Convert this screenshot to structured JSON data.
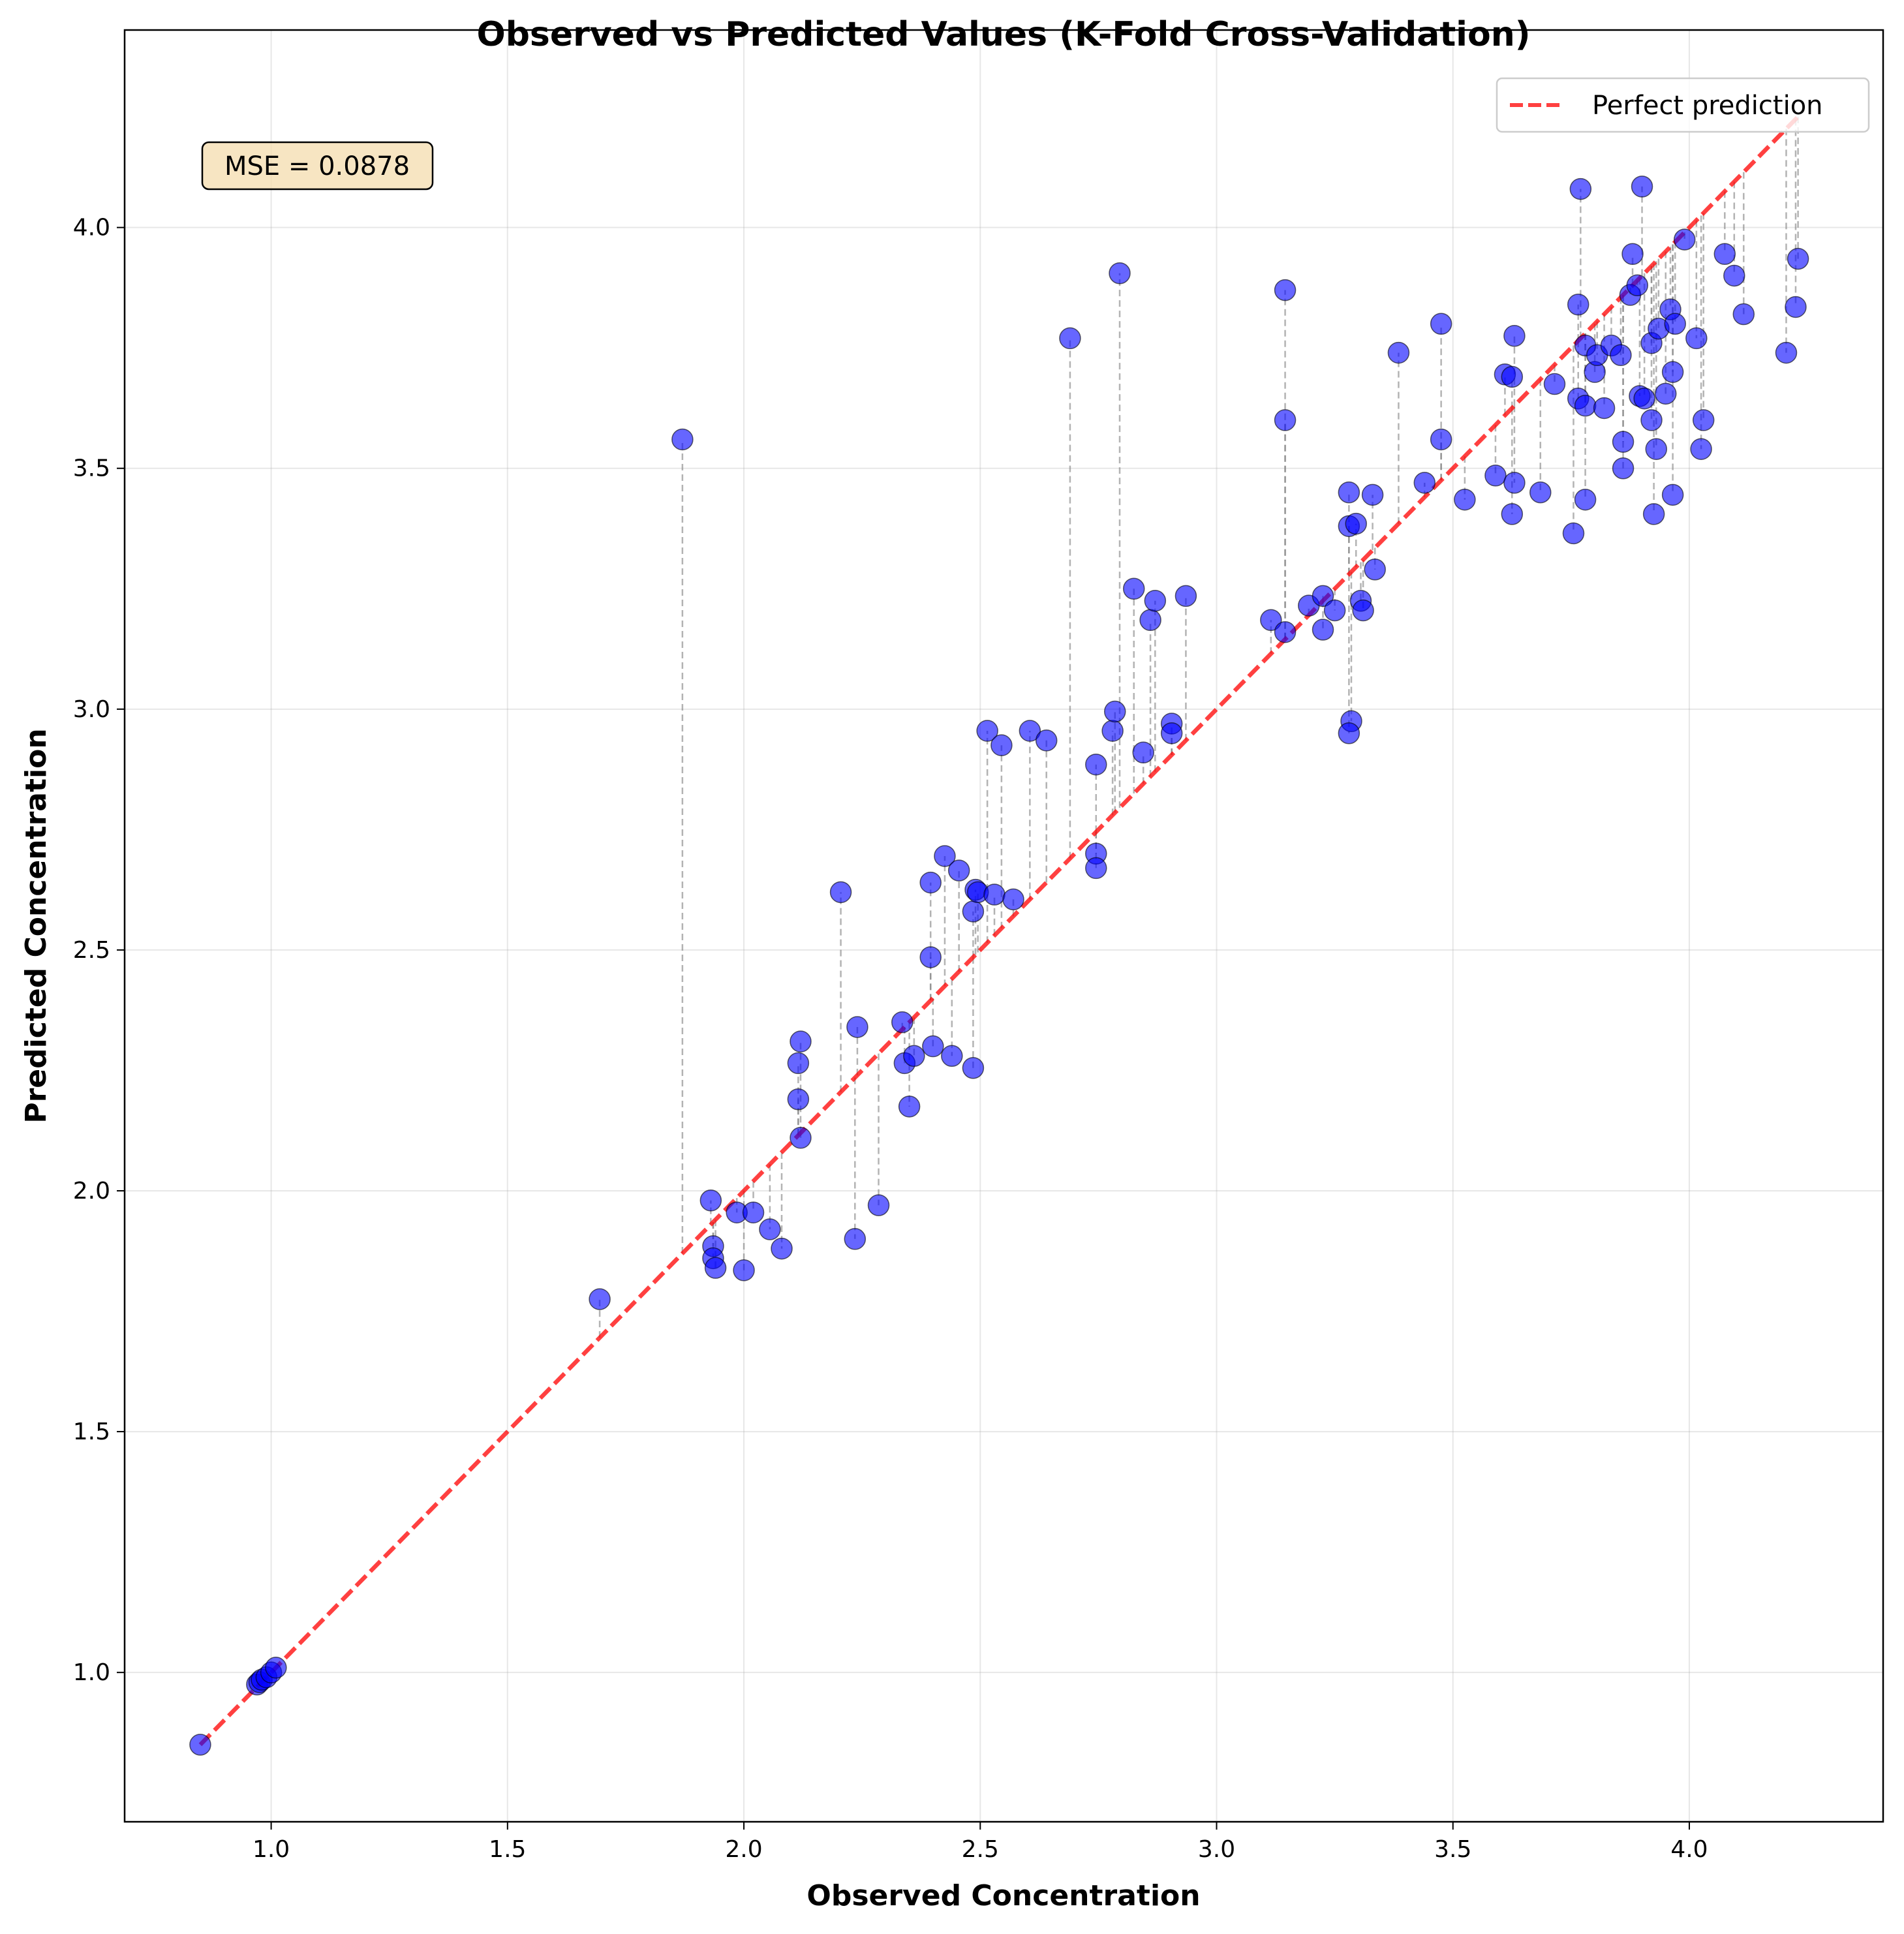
{
  "chart_data": {
    "type": "scatter",
    "title": "Observed vs Predicted Values (K-Fold Cross-Validation)",
    "xlabel": "Observed Concentration",
    "ylabel": "Predicted Concentration",
    "xlim": [
      0.69,
      4.41
    ],
    "ylim": [
      0.69,
      4.41
    ],
    "xticks": [
      1.0,
      1.5,
      2.0,
      2.5,
      3.0,
      3.5,
      4.0
    ],
    "yticks": [
      1.0,
      1.5,
      2.0,
      2.5,
      3.0,
      3.5,
      4.0
    ],
    "xtick_labels": [
      "1.0",
      "1.5",
      "2.0",
      "2.5",
      "3.0",
      "3.5",
      "4.0"
    ],
    "ytick_labels": [
      "1.0",
      "1.5",
      "2.0",
      "2.5",
      "3.0",
      "3.5",
      "4.0"
    ],
    "grid": true,
    "legend": {
      "placement": "top-right",
      "entries": [
        {
          "label": "Perfect prediction",
          "color": "#ff0000",
          "style": "dashed"
        }
      ]
    },
    "annotation": "MSE = 0.0878",
    "reference_line": {
      "from": [
        0.85,
        0.85
      ],
      "to": [
        4.23,
        4.23
      ],
      "color": "#ff0000"
    },
    "point_color": "#0000ff",
    "residual_line_color": "#808080",
    "points": [
      [
        0.85,
        0.85
      ],
      [
        0.97,
        0.975
      ],
      [
        0.975,
        0.98
      ],
      [
        0.98,
        0.985
      ],
      [
        0.99,
        0.99
      ],
      [
        1.0,
        1.0
      ],
      [
        1.01,
        1.01
      ],
      [
        1.695,
        1.775
      ],
      [
        1.87,
        3.56
      ],
      [
        1.93,
        1.98
      ],
      [
        1.935,
        1.885
      ],
      [
        1.935,
        1.86
      ],
      [
        1.94,
        1.84
      ],
      [
        1.985,
        1.955
      ],
      [
        2.0,
        1.835
      ],
      [
        2.02,
        1.955
      ],
      [
        2.055,
        1.92
      ],
      [
        2.08,
        1.88
      ],
      [
        2.115,
        2.265
      ],
      [
        2.115,
        2.19
      ],
      [
        2.12,
        2.31
      ],
      [
        2.12,
        2.11
      ],
      [
        2.205,
        2.62
      ],
      [
        2.24,
        2.34
      ],
      [
        2.235,
        1.9
      ],
      [
        2.285,
        1.97
      ],
      [
        2.335,
        2.35
      ],
      [
        2.34,
        2.265
      ],
      [
        2.35,
        2.175
      ],
      [
        2.36,
        2.28
      ],
      [
        2.395,
        2.64
      ],
      [
        2.395,
        2.485
      ],
      [
        2.4,
        2.3
      ],
      [
        2.425,
        2.695
      ],
      [
        2.44,
        2.28
      ],
      [
        2.455,
        2.665
      ],
      [
        2.485,
        2.58
      ],
      [
        2.485,
        2.255
      ],
      [
        2.49,
        2.625
      ],
      [
        2.495,
        2.62
      ],
      [
        2.515,
        2.955
      ],
      [
        2.53,
        2.615
      ],
      [
        2.545,
        2.925
      ],
      [
        2.57,
        2.605
      ],
      [
        2.605,
        2.955
      ],
      [
        2.64,
        2.935
      ],
      [
        2.69,
        3.77
      ],
      [
        2.745,
        2.885
      ],
      [
        2.745,
        2.7
      ],
      [
        2.745,
        2.67
      ],
      [
        2.78,
        2.955
      ],
      [
        2.785,
        2.995
      ],
      [
        2.795,
        3.905
      ],
      [
        2.825,
        3.25
      ],
      [
        2.845,
        2.91
      ],
      [
        2.86,
        3.185
      ],
      [
        2.87,
        3.225
      ],
      [
        2.905,
        2.97
      ],
      [
        2.905,
        2.95
      ],
      [
        2.935,
        3.235
      ],
      [
        3.115,
        3.185
      ],
      [
        3.145,
        3.87
      ],
      [
        3.145,
        3.6
      ],
      [
        3.145,
        3.16
      ],
      [
        3.195,
        3.215
      ],
      [
        3.225,
        3.235
      ],
      [
        3.225,
        3.165
      ],
      [
        3.25,
        3.205
      ],
      [
        3.28,
        3.45
      ],
      [
        3.28,
        3.38
      ],
      [
        3.285,
        2.975
      ],
      [
        3.28,
        2.95
      ],
      [
        3.295,
        3.385
      ],
      [
        3.305,
        3.225
      ],
      [
        3.31,
        3.205
      ],
      [
        3.33,
        3.445
      ],
      [
        3.335,
        3.29
      ],
      [
        3.385,
        3.74
      ],
      [
        3.44,
        3.47
      ],
      [
        3.475,
        3.8
      ],
      [
        3.475,
        3.56
      ],
      [
        3.525,
        3.435
      ],
      [
        3.59,
        3.485
      ],
      [
        3.61,
        3.695
      ],
      [
        3.625,
        3.69
      ],
      [
        3.625,
        3.405
      ],
      [
        3.63,
        3.775
      ],
      [
        3.63,
        3.47
      ],
      [
        3.685,
        3.45
      ],
      [
        3.715,
        3.675
      ],
      [
        3.755,
        3.365
      ],
      [
        3.765,
        3.84
      ],
      [
        3.77,
        4.08
      ],
      [
        3.765,
        3.645
      ],
      [
        3.78,
        3.755
      ],
      [
        3.78,
        3.63
      ],
      [
        3.78,
        3.435
      ],
      [
        3.8,
        3.7
      ],
      [
        3.805,
        3.735
      ],
      [
        3.82,
        3.625
      ],
      [
        3.835,
        3.755
      ],
      [
        3.855,
        3.735
      ],
      [
        3.86,
        3.555
      ],
      [
        3.86,
        3.5
      ],
      [
        3.875,
        3.86
      ],
      [
        3.88,
        3.945
      ],
      [
        3.89,
        3.88
      ],
      [
        3.895,
        3.65
      ],
      [
        3.9,
        4.085
      ],
      [
        3.905,
        3.645
      ],
      [
        3.92,
        3.76
      ],
      [
        3.92,
        3.6
      ],
      [
        3.925,
        3.405
      ],
      [
        3.93,
        3.54
      ],
      [
        3.935,
        3.79
      ],
      [
        3.95,
        3.655
      ],
      [
        3.96,
        3.83
      ],
      [
        3.965,
        3.7
      ],
      [
        3.965,
        3.445
      ],
      [
        3.97,
        3.8
      ],
      [
        3.99,
        3.975
      ],
      [
        4.015,
        3.77
      ],
      [
        4.025,
        3.54
      ],
      [
        4.03,
        3.6
      ],
      [
        4.075,
        3.945
      ],
      [
        4.095,
        3.9
      ],
      [
        4.115,
        3.82
      ],
      [
        4.205,
        3.74
      ],
      [
        4.225,
        3.835
      ],
      [
        4.23,
        3.935
      ]
    ]
  }
}
